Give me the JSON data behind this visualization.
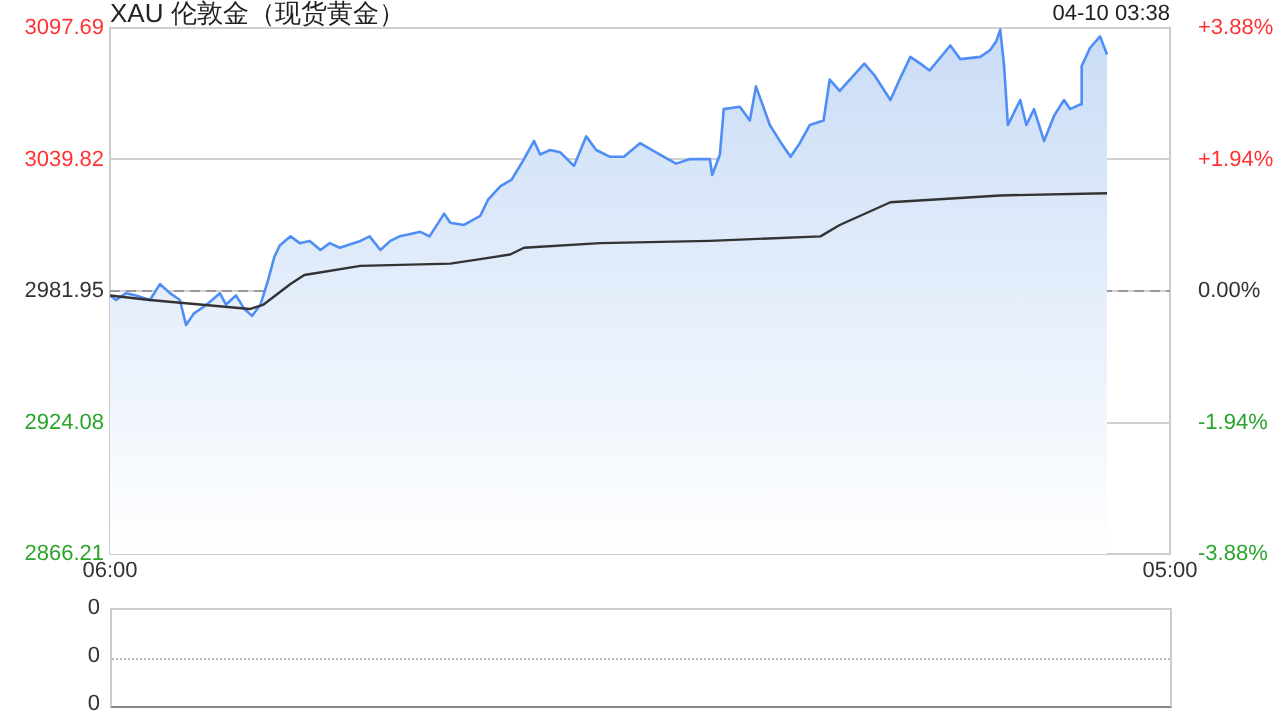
{
  "chart_data": [
    {
      "type": "line",
      "title": "XAU 伦敦金（现货黄金）",
      "annotations": [
        "04-10 03:38"
      ],
      "xlim": [
        "--04-09T06:00",
        "--04-10T05:00"
      ],
      "xticks": [
        {
          "value": "--04-09T06:00",
          "label": "06:00"
        },
        {
          "value": "--04-10T05:00",
          "label": "05:00"
        }
      ],
      "ylim": [
        2866.21,
        3097.69
      ],
      "yticks": [
        2866.21,
        2924.08,
        2981.95,
        3039.82,
        3097.69
      ],
      "y2lim": [
        -3.88,
        3.88
      ],
      "y2ticks": [
        {
          "value": -3.88,
          "label": "-3.88%"
        },
        {
          "value": -1.94,
          "label": "-1.94%"
        },
        {
          "value": 0,
          "label": "0.00%"
        },
        {
          "value": 1.94,
          "label": "+1.94%"
        },
        {
          "value": 3.88,
          "label": "+3.88%"
        }
      ],
      "grid": "y",
      "legend": false,
      "marker": "none",
      "ref_lines": [
        {
          "axis": "y",
          "value": 2981.95,
          "color": "#999999",
          "line_style": "dashed"
        }
      ],
      "series": [
        {
          "type": "area",
          "color": "#4f8ef5",
          "x": [
            "--04-09T06:00",
            "--04-09T06:08",
            "--04-09T06:21",
            "--04-09T06:34",
            "--04-09T06:52",
            "--04-09T07:05",
            "--04-09T07:18",
            "--04-09T07:31",
            "--04-09T07:39",
            "--04-09T07:49",
            "--04-09T08:02",
            "--04-09T08:13",
            "--04-09T08:23",
            "--04-09T08:31",
            "--04-09T08:44",
            "--04-09T08:55",
            "--04-09T09:05",
            "--04-09T09:16",
            "--04-09T09:26",
            "--04-09T09:34",
            "--04-09T09:41",
            "--04-09T09:55",
            "--04-09T10:07",
            "--04-09T10:20",
            "--04-09T10:34",
            "--04-09T10:46",
            "--04-09T10:59",
            "--04-09T11:26",
            "--04-09T11:38",
            "--04-09T11:52",
            "--04-09T12:05",
            "--04-09T12:17",
            "--04-09T12:31",
            "--04-09T12:44",
            "--04-09T12:56",
            "--04-09T13:15",
            "--04-09T13:23",
            "--04-09T13:41",
            "--04-09T14:02",
            "--04-09T14:12",
            "--04-09T14:28",
            "--04-09T14:43",
            "--04-09T14:59",
            "--04-09T15:12",
            "--04-09T15:20",
            "--04-09T15:33",
            "--04-09T15:46",
            "--04-09T16:04",
            "--04-09T16:20",
            "--04-09T16:33",
            "--04-09T16:51",
            "--04-09T17:09",
            "--04-09T17:30",
            "--04-09T17:56",
            "--04-09T18:17",
            "--04-09T18:35",
            "--04-09T19:01",
            "--04-09T19:04",
            "--04-09T19:14",
            "--04-09T19:19",
            "--04-09T19:40",
            "--04-09T19:53",
            "--04-09T20:01",
            "--04-09T20:19",
            "--04-09T20:32",
            "--04-09T20:46",
            "--04-09T20:58",
            "--04-09T21:11",
            "--04-09T21:29",
            "--04-09T21:37",
            "--04-09T21:50",
            "--04-09T22:22",
            "--04-09T22:35",
            "--04-09T22:56",
            "--04-09T23:08",
            "--04-09T23:22",
            "--04-09T23:35",
            "--04-09T23:47",
            "--04-10T00:14",
            "--04-10T00:27",
            "--04-10T00:53",
            "--04-10T01:06",
            "--04-10T01:14",
            "--04-10T01:19",
            "--04-10T01:24",
            "--04-10T01:29",
            "--04-10T01:45",
            "--04-10T01:53",
            "--04-10T02:03",
            "--04-10T02:16",
            "--04-10T02:29",
            "--04-10T02:42",
            "--04-10T02:50",
            "--04-10T03:03",
            "--04-10T03:05",
            "--04-10T03:16",
            "--04-10T03:29",
            "--04-10T03:38"
          ],
          "values": [
            2980,
            2978,
            2981,
            2980,
            2978,
            2985,
            2981,
            2978,
            2967,
            2972,
            2975,
            2978,
            2981,
            2976,
            2980,
            2974,
            2971,
            2976,
            2987,
            2997,
            3002,
            3006,
            3003,
            3004,
            3000,
            3003,
            3001,
            3004,
            3006,
            3000,
            3004,
            3006,
            3007,
            3008,
            3006,
            3016,
            3012,
            3011,
            3015,
            3022,
            3028,
            3031,
            3040,
            3048,
            3042,
            3044,
            3043,
            3037,
            3050,
            3044,
            3041,
            3041,
            3047,
            3042,
            3038,
            3040,
            3040,
            3033,
            3042,
            3062,
            3063,
            3057,
            3072,
            3055,
            3048,
            3041,
            3047,
            3055,
            3057,
            3075,
            3070,
            3082,
            3077,
            3066,
            3075,
            3085,
            3082,
            3079,
            3090,
            3084,
            3085,
            3088,
            3092,
            3097,
            3081,
            3055,
            3066,
            3055,
            3062,
            3048,
            3059,
            3066,
            3062,
            3064,
            3081,
            3089,
            3094,
            3086
          ]
        },
        {
          "type": "line",
          "color": "#333333",
          "x": [
            "--04-09T06:00",
            "--04-09T06:52",
            "--04-09T07:57",
            "--04-09T09:02",
            "--04-09T09:20",
            "--04-09T09:55",
            "--04-09T10:13",
            "--04-09T11:26",
            "--04-09T13:23",
            "--04-09T14:02",
            "--04-09T14:41",
            "--04-09T14:59",
            "--04-09T16:38",
            "--04-09T19:01",
            "--04-09T21:25",
            "--04-09T21:50",
            "--04-09T22:56",
            "--04-10T01:19",
            "--04-10T03:38"
          ],
          "values": [
            2980,
            2978,
            2976,
            2974,
            2976,
            2985,
            2989,
            2993,
            2994,
            2996,
            2998,
            3001,
            3003,
            3004,
            3006,
            3011,
            3021,
            3024,
            3025
          ]
        }
      ]
    },
    {
      "type": "other",
      "annotations": [
        "0",
        "0",
        "0"
      ]
    }
  ]
}
